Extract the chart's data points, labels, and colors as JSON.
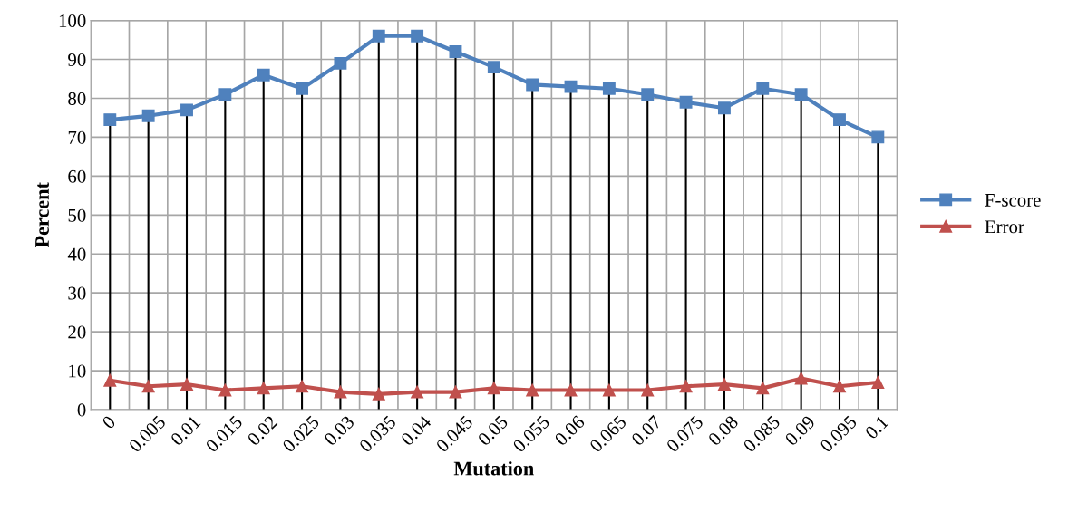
{
  "chart_data": {
    "type": "line",
    "xlabel": "Mutation",
    "ylabel": "Percent",
    "categories": [
      "0",
      "0.005",
      "0.01",
      "0.015",
      "0.02",
      "0.025",
      "0.03",
      "0.035",
      "0.04",
      "0.045",
      "0.05",
      "0.055",
      "0.06",
      "0.065",
      "0.07",
      "0.075",
      "0.08",
      "0.085",
      "0.09",
      "0.095",
      "0.1"
    ],
    "series": [
      {
        "name": "F-score",
        "color": "#4f81bd",
        "marker": "square",
        "values": [
          74.5,
          75.5,
          77,
          81,
          86,
          82.5,
          89,
          96,
          96,
          92,
          88,
          83.5,
          83,
          82.5,
          81,
          79,
          77.5,
          82.5,
          81,
          74.5,
          70
        ]
      },
      {
        "name": "Error",
        "color": "#c0504d",
        "marker": "triangle",
        "values": [
          7.5,
          6,
          6.5,
          5,
          5.5,
          6,
          4.5,
          4,
          4.5,
          4.5,
          5.5,
          5,
          5,
          5,
          5,
          6,
          6.5,
          5.5,
          8,
          6,
          7
        ]
      }
    ],
    "ylim": [
      0,
      100
    ],
    "yticks": [
      0,
      10,
      20,
      30,
      40,
      50,
      60,
      70,
      80,
      90,
      100
    ],
    "grid": true,
    "legend": "right",
    "line_style": "solid"
  }
}
